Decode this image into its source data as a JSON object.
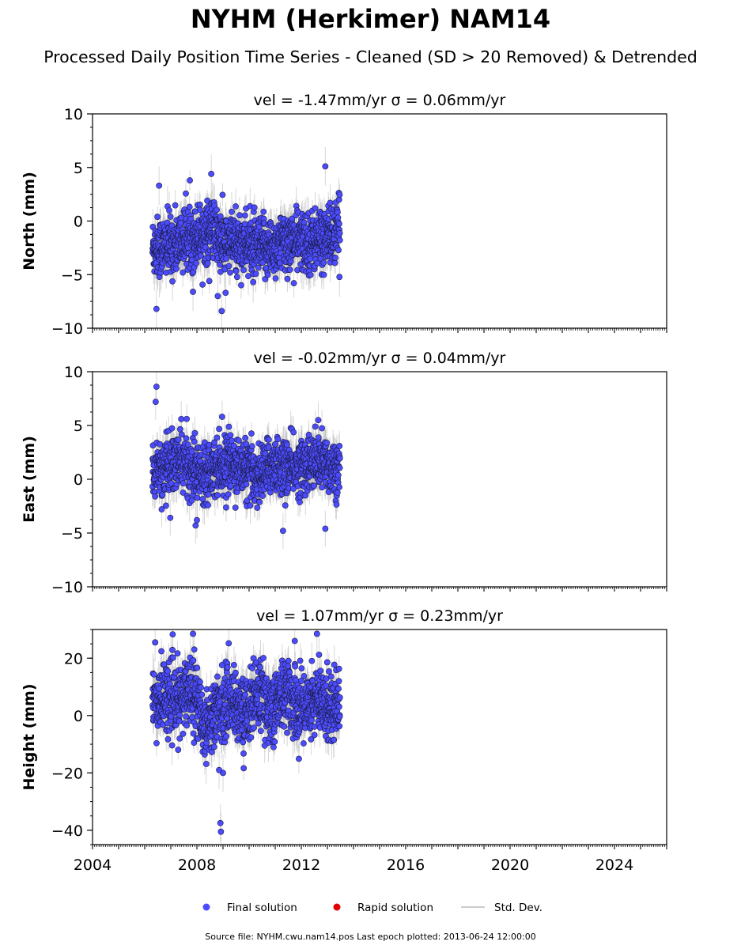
{
  "title": "NYHM (Herkimer) NAM14",
  "subtitle": "Processed Daily Position Time Series - Cleaned (SD > 20 Removed) & Detrended",
  "footer": "Source file: NYHM.cwu.nam14.pos  Last epoch plotted: 2013-06-24 12:00:00",
  "colors": {
    "final": "#4c4cff",
    "rapid": "#e00000",
    "std": "#bdbdbd",
    "marker_edge": "#1a1a40"
  },
  "legend": {
    "final": "Final solution",
    "rapid": "Rapid solution",
    "std": "Std. Dev.",
    "placement": "bottom-center"
  },
  "chart_data": [
    {
      "type": "scatter",
      "ylabel": "North (mm)",
      "panel_title": "vel = -1.47mm/yr   σ = 0.06mm/yr",
      "xlim": [
        2004.0,
        2026.0
      ],
      "ylim": [
        -10,
        10
      ],
      "yticks": [
        "10",
        "5",
        "0",
        "−5",
        "−10"
      ],
      "ytick_values": [
        10,
        5,
        0,
        -5,
        -10
      ],
      "series_start": 2006.3,
      "series_end": 2013.48,
      "mean_profile": [
        [
          2006.3,
          -2.5
        ],
        [
          2007.0,
          -2.3
        ],
        [
          2007.6,
          -1.6
        ],
        [
          2008.0,
          -1.4
        ],
        [
          2008.6,
          -0.8
        ],
        [
          2009.0,
          -2.2
        ],
        [
          2009.7,
          -2.0
        ],
        [
          2010.3,
          -2.6
        ],
        [
          2011.0,
          -2.4
        ],
        [
          2011.6,
          -1.8
        ],
        [
          2012.2,
          -2.0
        ],
        [
          2012.9,
          -1.6
        ],
        [
          2013.48,
          -1.0
        ]
      ],
      "scatter_sd": 1.4,
      "std_sd": 1.5,
      "outliers": [
        [
          2006.55,
          3.3
        ],
        [
          2008.55,
          4.4
        ],
        [
          2012.92,
          5.1
        ],
        [
          2006.45,
          -8.2
        ],
        [
          2008.95,
          -8.4
        ],
        [
          2009.1,
          -6.7
        ],
        [
          2008.8,
          -7.0
        ],
        [
          2007.85,
          -6.6
        ]
      ],
      "grid": false
    },
    {
      "type": "scatter",
      "ylabel": "East (mm)",
      "panel_title": "vel = -0.02mm/yr   σ = 0.04mm/yr",
      "xlim": [
        2004.0,
        2026.0
      ],
      "ylim": [
        -10,
        10
      ],
      "yticks": [
        "10",
        "5",
        "0",
        "−5",
        "−10"
      ],
      "ytick_values": [
        10,
        5,
        0,
        -5,
        -10
      ],
      "series_start": 2006.3,
      "series_end": 2013.48,
      "mean_profile": [
        [
          2006.3,
          1.0
        ],
        [
          2006.8,
          1.2
        ],
        [
          2007.5,
          1.6
        ],
        [
          2008.0,
          0.6
        ],
        [
          2008.6,
          1.2
        ],
        [
          2009.2,
          1.5
        ],
        [
          2009.8,
          1.0
        ],
        [
          2010.3,
          0.2
        ],
        [
          2010.9,
          1.4
        ],
        [
          2011.4,
          1.0
        ],
        [
          2012.0,
          1.2
        ],
        [
          2012.6,
          1.6
        ],
        [
          2013.48,
          1.0
        ]
      ],
      "scatter_sd": 1.3,
      "std_sd": 1.4,
      "outliers": [
        [
          2006.45,
          8.6
        ],
        [
          2006.42,
          7.2
        ],
        [
          2007.4,
          5.6
        ],
        [
          2012.65,
          5.5
        ],
        [
          2011.3,
          -4.8
        ],
        [
          2012.92,
          -4.6
        ],
        [
          2007.95,
          -4.3
        ],
        [
          2008.0,
          -3.8
        ],
        [
          2006.65,
          -2.8
        ]
      ],
      "grid": false
    },
    {
      "type": "scatter",
      "ylabel": "Height (mm)",
      "panel_title": "vel = 1.07mm/yr   σ = 0.23mm/yr",
      "xlim": [
        2004.0,
        2026.0
      ],
      "ylim": [
        -45,
        30
      ],
      "yticks": [
        "20",
        "0",
        "−20",
        "−40"
      ],
      "ytick_values": [
        20,
        0,
        -20,
        -40
      ],
      "series_start": 2006.3,
      "series_end": 2013.48,
      "mean_profile": [
        [
          2006.3,
          4
        ],
        [
          2006.8,
          7
        ],
        [
          2007.3,
          4
        ],
        [
          2007.8,
          11
        ],
        [
          2008.3,
          -4
        ],
        [
          2008.8,
          2
        ],
        [
          2009.3,
          6
        ],
        [
          2009.8,
          0
        ],
        [
          2010.3,
          8
        ],
        [
          2010.9,
          2
        ],
        [
          2011.4,
          9
        ],
        [
          2011.9,
          2
        ],
        [
          2012.5,
          6
        ],
        [
          2013.0,
          3
        ],
        [
          2013.48,
          5
        ]
      ],
      "scatter_sd": 6.0,
      "std_sd": 5.5,
      "outliers": [
        [
          2008.9,
          -37.5
        ],
        [
          2008.92,
          -40.5
        ],
        [
          2006.4,
          25.5
        ],
        [
          2007.85,
          28.5
        ],
        [
          2012.6,
          28.5
        ],
        [
          2011.75,
          26
        ],
        [
          2009.0,
          -20
        ],
        [
          2008.85,
          -19
        ]
      ],
      "grid": false
    }
  ],
  "xaxis": {
    "tick_values": [
      2004,
      2008,
      2012,
      2016,
      2020,
      2024
    ],
    "tick_labels": [
      "2004",
      "2008",
      "2012",
      "2016",
      "2020",
      "2024"
    ]
  }
}
